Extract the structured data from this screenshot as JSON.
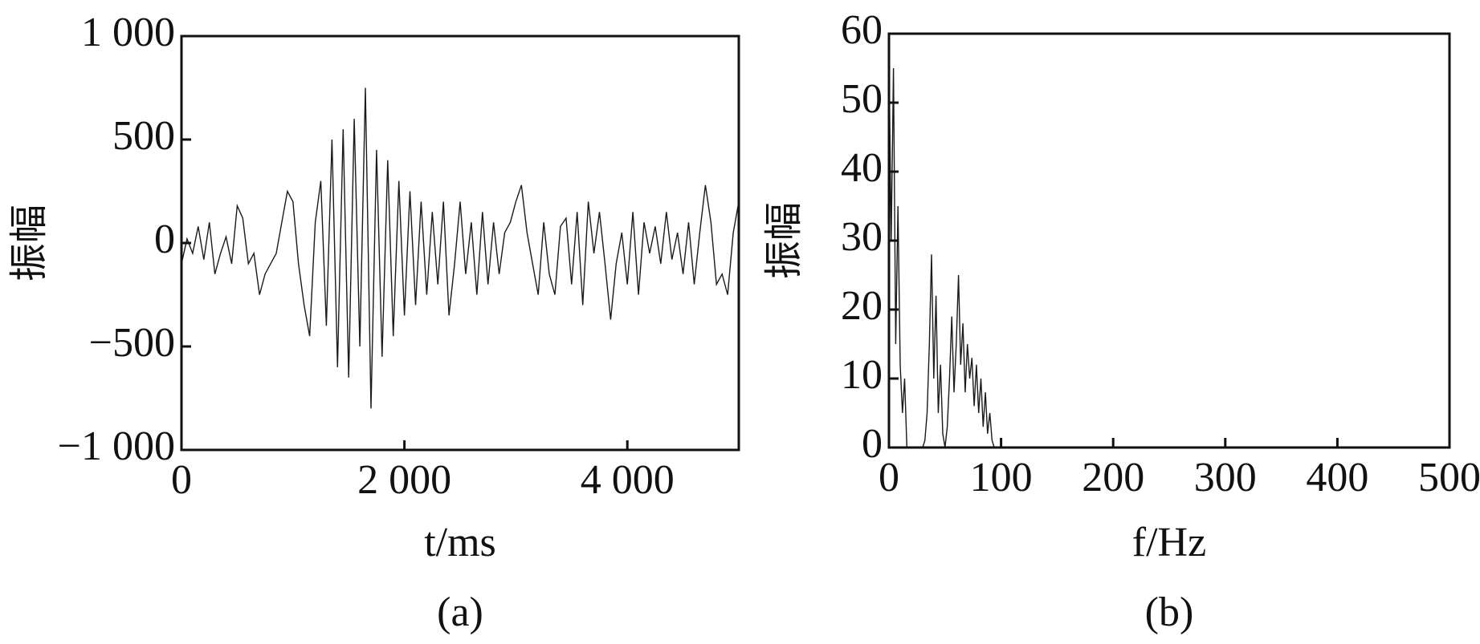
{
  "chart_data": [
    {
      "type": "line",
      "color": "#1a1a1a",
      "xlabel": "t/ms",
      "ylabel": "振幅",
      "label": "(a)",
      "xlim": [
        0,
        5000
      ],
      "ylim": [
        -1000,
        1000
      ],
      "xticks": [
        0,
        {
          "value": 2000,
          "label": "2 000"
        },
        {
          "value": 4000,
          "label": "4 000"
        }
      ],
      "yticks": [
        {
          "value": 1000,
          "label": "1 000"
        },
        500,
        0,
        {
          "value": -500,
          "label": "−500"
        },
        {
          "value": -1000,
          "label": "−1 000"
        }
      ],
      "x": [
        0,
        50,
        100,
        150,
        200,
        250,
        300,
        350,
        400,
        450,
        500,
        550,
        600,
        650,
        700,
        750,
        800,
        850,
        900,
        950,
        1000,
        1050,
        1100,
        1150,
        1200,
        1250,
        1300,
        1350,
        1400,
        1450,
        1500,
        1550,
        1600,
        1650,
        1700,
        1750,
        1800,
        1850,
        1900,
        1950,
        2000,
        2050,
        2100,
        2150,
        2200,
        2250,
        2300,
        2350,
        2400,
        2450,
        2500,
        2550,
        2600,
        2650,
        2700,
        2750,
        2800,
        2850,
        2900,
        2950,
        3000,
        3050,
        3100,
        3150,
        3200,
        3250,
        3300,
        3350,
        3400,
        3450,
        3500,
        3550,
        3600,
        3650,
        3700,
        3750,
        3800,
        3850,
        3900,
        3950,
        4000,
        4050,
        4100,
        4150,
        4200,
        4250,
        4300,
        4350,
        4400,
        4450,
        4500,
        4550,
        4600,
        4650,
        4700,
        4750,
        4800,
        4850,
        4900,
        4950,
        5000
      ],
      "values": [
        -100,
        20,
        -50,
        80,
        -80,
        100,
        -150,
        -50,
        30,
        -100,
        180,
        120,
        -100,
        -50,
        -250,
        -150,
        -100,
        -50,
        100,
        250,
        200,
        -100,
        -300,
        -450,
        100,
        300,
        -400,
        500,
        -600,
        550,
        -650,
        600,
        -500,
        750,
        -800,
        450,
        -550,
        400,
        -450,
        300,
        -350,
        250,
        -300,
        200,
        -250,
        150,
        -200,
        200,
        -350,
        -100,
        200,
        -150,
        100,
        -250,
        150,
        -200,
        100,
        -150,
        50,
        100,
        200,
        280,
        50,
        -100,
        -250,
        100,
        -150,
        -250,
        80,
        120,
        -200,
        150,
        -300,
        200,
        -50,
        150,
        -100,
        -370,
        -100,
        50,
        -200,
        150,
        -250,
        100,
        -50,
        80,
        -100,
        150,
        -80,
        50,
        -150,
        100,
        -200,
        50,
        280,
        100,
        -200,
        -150,
        -250,
        50,
        200
      ]
    },
    {
      "type": "line",
      "color": "#1a1a1a",
      "xlabel": "f/Hz",
      "ylabel": "振幅",
      "label": "(b)",
      "xlim": [
        0,
        500
      ],
      "ylim": [
        0,
        60
      ],
      "xticks": [
        0,
        100,
        200,
        300,
        400,
        500
      ],
      "yticks": [
        0,
        10,
        20,
        30,
        40,
        50,
        60
      ],
      "x": [
        0,
        2,
        4,
        6,
        8,
        10,
        12,
        14,
        16,
        18,
        20,
        22,
        24,
        26,
        28,
        30,
        32,
        34,
        36,
        38,
        40,
        42,
        44,
        46,
        48,
        50,
        52,
        54,
        56,
        58,
        60,
        62,
        64,
        66,
        68,
        70,
        72,
        74,
        76,
        78,
        80,
        82,
        84,
        86,
        88,
        90,
        92,
        94,
        96,
        98,
        100
      ],
      "values": [
        57,
        30,
        55,
        15,
        35,
        12,
        5,
        10,
        0,
        0,
        0,
        0,
        0,
        0,
        0,
        0,
        1,
        5,
        15,
        28,
        10,
        22,
        5,
        12,
        2,
        0,
        3,
        10,
        19,
        8,
        15,
        25,
        12,
        18,
        8,
        15,
        10,
        13,
        6,
        12,
        5,
        10,
        3,
        8,
        2,
        5,
        1,
        0,
        0,
        0,
        0
      ]
    }
  ]
}
